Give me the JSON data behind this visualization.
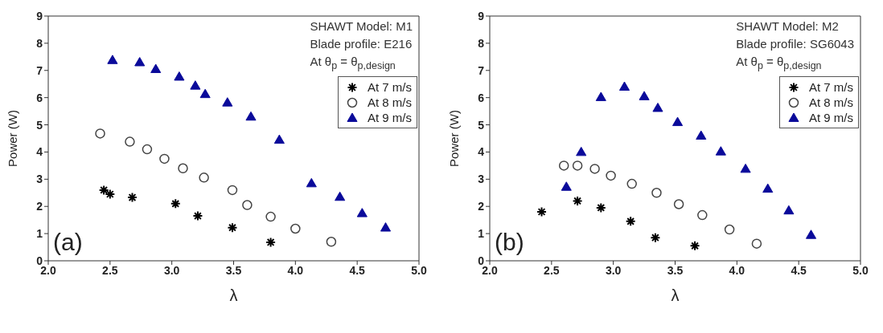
{
  "chart_data": [
    {
      "type": "scatter",
      "xlabel": "λ",
      "ylabel": "Power (W)",
      "xlim": [
        2,
        5
      ],
      "ylim": [
        0,
        9
      ],
      "xticks": [
        {
          "value": 2,
          "label": "2.0"
        },
        {
          "value": 2.5,
          "label": "2.5"
        },
        {
          "value": 3,
          "label": "3.0"
        },
        {
          "value": 3.5,
          "label": "3.5"
        },
        {
          "value": 4,
          "label": "4.0"
        },
        {
          "value": 4.5,
          "label": "4.5"
        },
        {
          "value": 5,
          "label": "5.0"
        }
      ],
      "yticks": [
        0,
        1,
        2,
        3,
        4,
        5,
        6,
        7,
        8,
        9
      ],
      "legend": "top right",
      "annotations": [
        "SHAWT Model: M1",
        "Blade profile: E216",
        "At θ$_{p}$ = θ$_{p,design}$",
        "(a)"
      ],
      "series": [
        {
          "name": "At 7 m/s",
          "color": "#000000",
          "marker": "cross",
          "x": [
            2.45,
            2.5,
            2.68,
            3.03,
            3.21,
            3.49,
            3.8
          ],
          "values": [
            2.6,
            2.45,
            2.33,
            2.1,
            1.65,
            1.22,
            0.68
          ]
        },
        {
          "name": "At 8 m/s",
          "color": "#444444",
          "marker": "circle",
          "x": [
            2.42,
            2.66,
            2.8,
            2.94,
            3.09,
            3.26,
            3.49,
            3.61,
            3.8,
            4.0,
            4.29
          ],
          "values": [
            4.68,
            4.38,
            4.1,
            3.75,
            3.4,
            3.06,
            2.6,
            2.05,
            1.62,
            1.18,
            0.7
          ]
        },
        {
          "name": "At 9 m/s",
          "color": "#0a0a9a",
          "marker": "triangle",
          "x": [
            2.52,
            2.74,
            2.87,
            3.06,
            3.19,
            3.27,
            3.45,
            3.64,
            3.87,
            4.13,
            4.36,
            4.54,
            4.73
          ],
          "values": [
            7.38,
            7.3,
            7.05,
            6.77,
            6.44,
            6.13,
            5.82,
            5.3,
            4.45,
            2.85,
            2.35,
            1.75,
            1.22
          ]
        }
      ]
    },
    {
      "type": "scatter",
      "xlabel": "λ",
      "ylabel": "Power (W)",
      "xlim": [
        2,
        5
      ],
      "ylim": [
        0,
        9
      ],
      "xticks": [
        {
          "value": 2,
          "label": "2.0"
        },
        {
          "value": 2.5,
          "label": "2.5"
        },
        {
          "value": 3,
          "label": "3.0"
        },
        {
          "value": 3.5,
          "label": "3.5"
        },
        {
          "value": 4,
          "label": "4.0"
        },
        {
          "value": 4.5,
          "label": "4.5"
        },
        {
          "value": 5,
          "label": "5.0"
        }
      ],
      "yticks": [
        0,
        1,
        2,
        3,
        4,
        5,
        6,
        7,
        8,
        9
      ],
      "legend": "top right",
      "annotations": [
        "SHAWT Model: M2",
        "Blade profile: SG6043",
        "At θ$_{p}$ = θ$_{p,design}$",
        "(b)"
      ],
      "series": [
        {
          "name": "At 7 m/s",
          "color": "#000000",
          "marker": "cross",
          "x": [
            2.42,
            2.71,
            2.9,
            3.14,
            3.34,
            3.66
          ],
          "values": [
            1.8,
            2.2,
            1.95,
            1.45,
            0.85,
            0.55
          ]
        },
        {
          "name": "At 8 m/s",
          "color": "#444444",
          "marker": "circle",
          "x": [
            2.6,
            2.71,
            2.85,
            2.98,
            3.15,
            3.35,
            3.53,
            3.72,
            3.94,
            4.16
          ],
          "values": [
            3.5,
            3.5,
            3.38,
            3.13,
            2.83,
            2.5,
            2.08,
            1.68,
            1.15,
            0.63
          ]
        },
        {
          "name": "At 9 m/s",
          "color": "#0a0a9a",
          "marker": "triangle",
          "x": [
            2.62,
            2.74,
            2.9,
            3.09,
            3.25,
            3.36,
            3.52,
            3.71,
            3.87,
            4.07,
            4.25,
            4.42,
            4.6
          ],
          "values": [
            2.72,
            4.0,
            6.02,
            6.4,
            6.05,
            5.62,
            5.1,
            4.6,
            4.02,
            3.38,
            2.65,
            1.85,
            0.95
          ]
        }
      ]
    }
  ]
}
